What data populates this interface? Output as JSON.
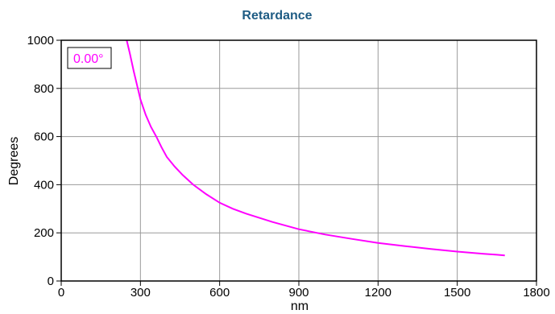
{
  "chart_data": {
    "type": "line",
    "title": "Retardance",
    "xlabel": "nm",
    "ylabel": "Degrees",
    "xlim": [
      0,
      1800
    ],
    "ylim": [
      0,
      1000
    ],
    "xticks": [
      0,
      300,
      600,
      900,
      1200,
      1500,
      1800
    ],
    "yticks": [
      0,
      200,
      400,
      600,
      800,
      1000
    ],
    "grid": true,
    "legend_label": "0.00°",
    "legend_position": "top-left",
    "series": [
      {
        "name": "0.00°",
        "x": [
          248,
          260,
          275,
          290,
          300,
          320,
          340,
          360,
          380,
          400,
          430,
          460,
          500,
          550,
          600,
          650,
          700,
          800,
          900,
          1000,
          1100,
          1200,
          1300,
          1400,
          1500,
          1600,
          1650,
          1680
        ],
        "y": [
          1000,
          945,
          870,
          800,
          755,
          690,
          640,
          600,
          555,
          515,
          475,
          440,
          400,
          360,
          325,
          300,
          280,
          245,
          215,
          193,
          175,
          158,
          145,
          133,
          122,
          113,
          109,
          106
        ]
      }
    ]
  },
  "colors": {
    "title": "#1f5c84",
    "series": "#ff00ff",
    "grid": "#9a9a9a",
    "frame": "#000000"
  }
}
